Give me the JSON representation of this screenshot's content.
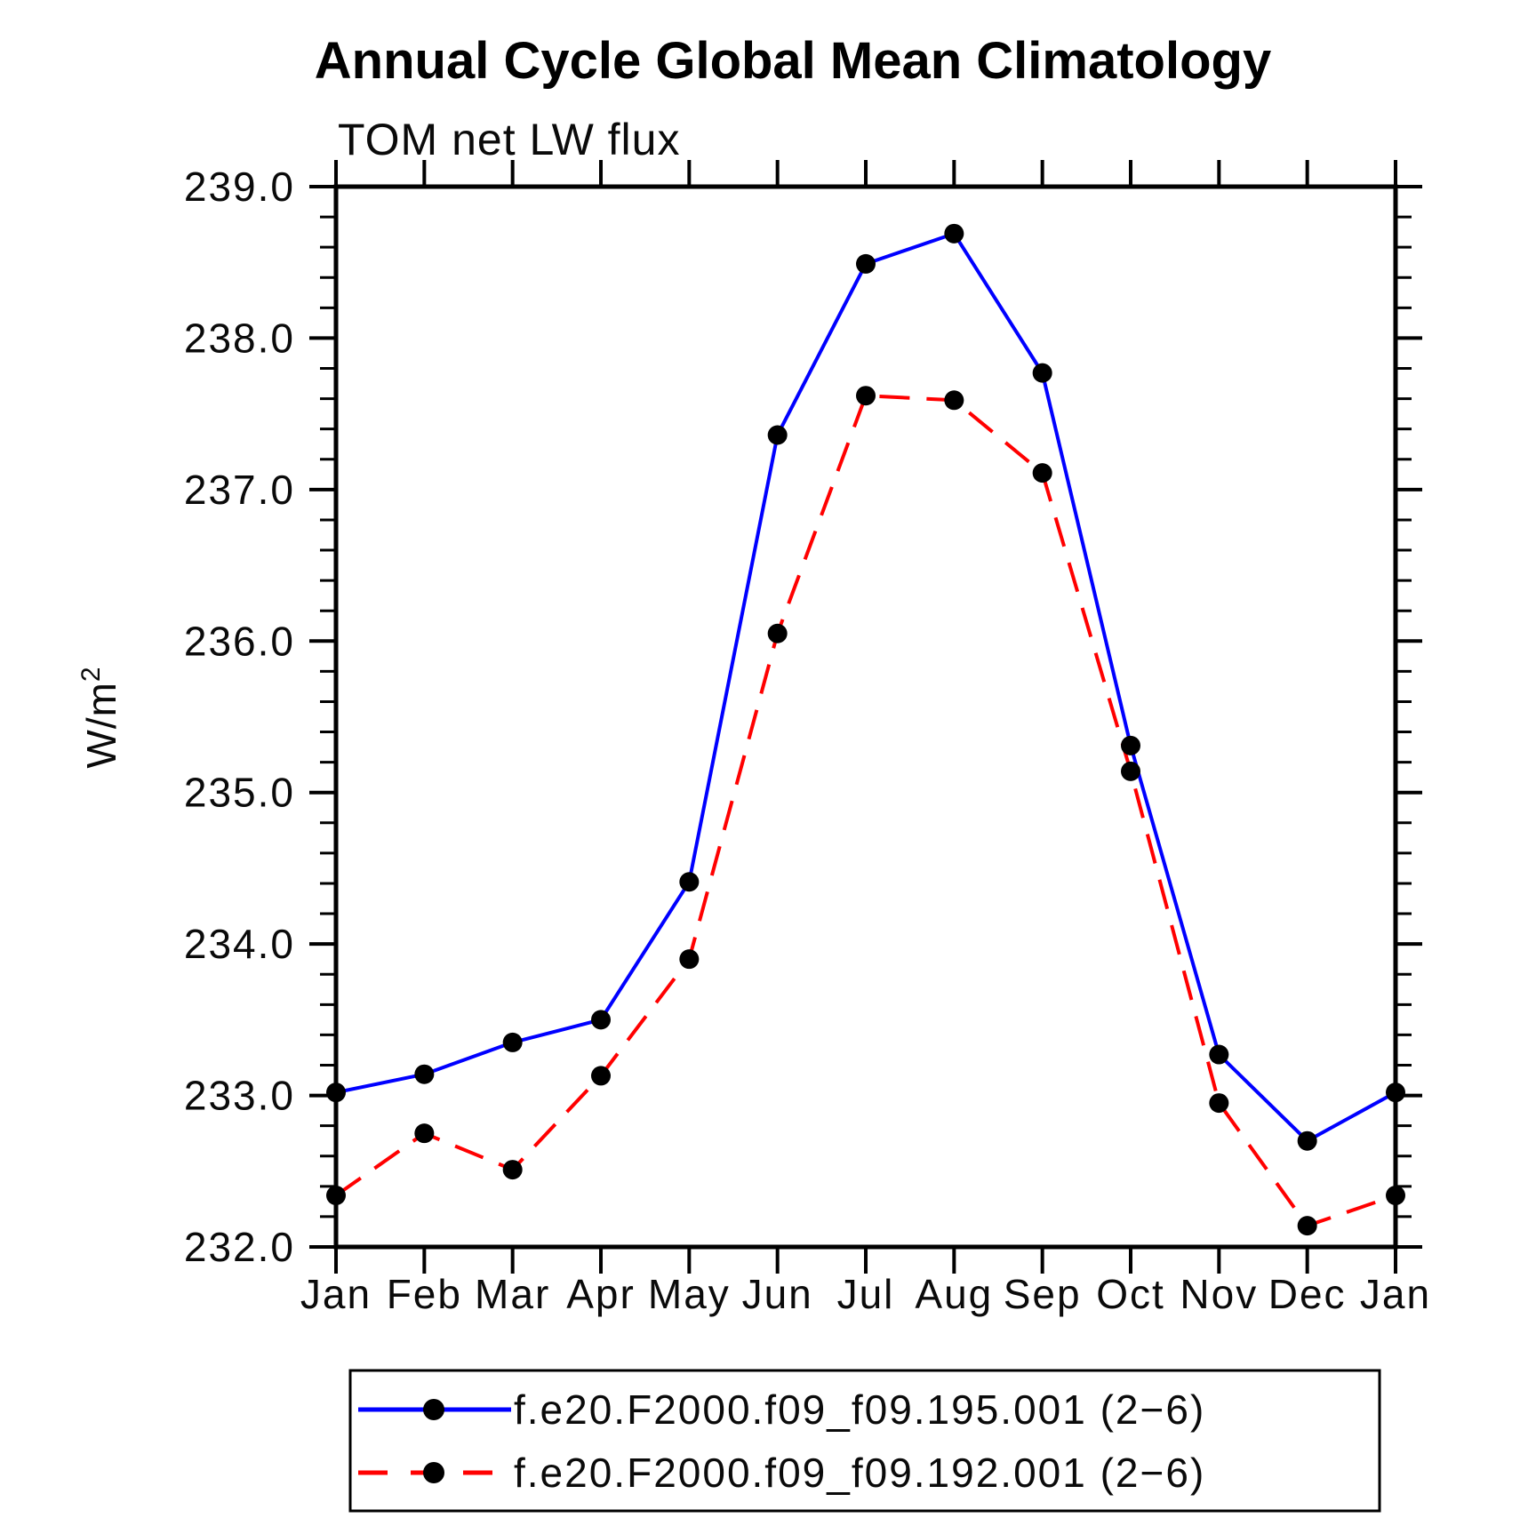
{
  "chart_data": {
    "type": "line",
    "title": "Annual Cycle Global Mean Climatology",
    "subtitle": "TOM net LW flux",
    "ylabel_base": "W/m",
    "ylabel_exponent": "2",
    "x_categories": [
      "Jan",
      "Feb",
      "Mar",
      "Apr",
      "May",
      "Jun",
      "Jul",
      "Aug",
      "Sep",
      "Oct",
      "Nov",
      "Dec",
      "Jan"
    ],
    "ytick_labels": [
      "232.0",
      "233.0",
      "234.0",
      "235.0",
      "236.0",
      "237.0",
      "238.0",
      "239.0"
    ],
    "ylim": [
      232.0,
      239.0
    ],
    "y_major_step": 1.0,
    "y_minor_step": 0.2,
    "grid": false,
    "legend_position": "bottom",
    "marker": "filled-black-circle",
    "series": [
      {
        "name": "f.e20.F2000.f09_f09.195.001 (2−6)",
        "color": "#0000ff",
        "style": "solid",
        "values": [
          233.02,
          233.14,
          233.35,
          233.5,
          234.41,
          237.36,
          238.49,
          238.69,
          237.77,
          235.31,
          233.27,
          232.7,
          233.02
        ]
      },
      {
        "name": "f.e20.F2000.f09_f09.192.001 (2−6)",
        "color": "#ff0000",
        "style": "dashed",
        "values": [
          232.34,
          232.75,
          232.51,
          233.13,
          233.9,
          236.05,
          237.62,
          237.59,
          237.11,
          235.14,
          232.95,
          232.14,
          232.34
        ]
      }
    ]
  }
}
